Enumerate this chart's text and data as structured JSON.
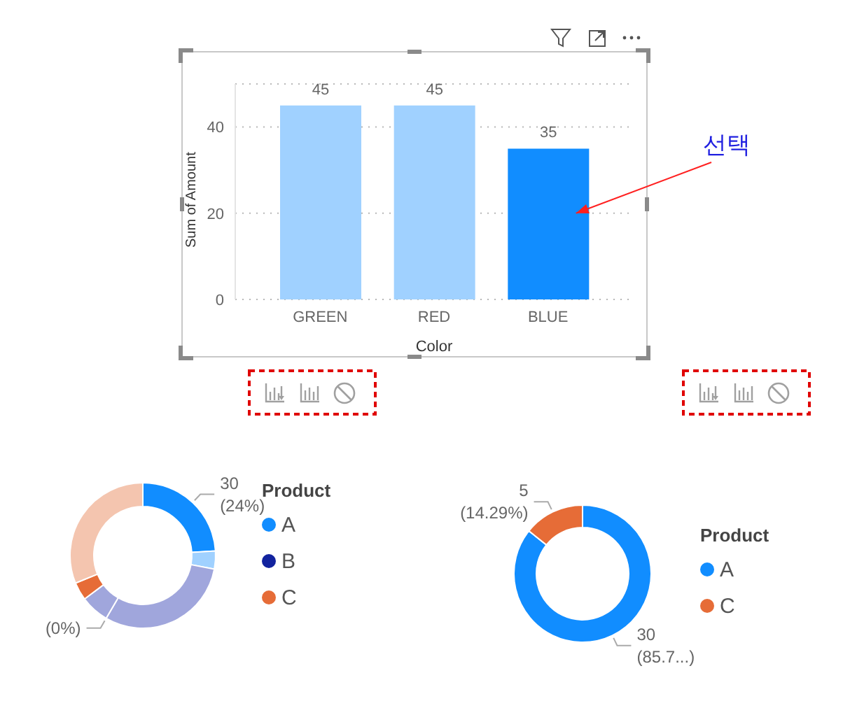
{
  "chart_data": [
    {
      "type": "bar",
      "categories": [
        "GREEN",
        "RED",
        "BLUE"
      ],
      "values": [
        45,
        45,
        35
      ],
      "colors": [
        "#a0d1ff",
        "#a0d1ff",
        "#118dff"
      ],
      "xlabel": "Color",
      "ylabel": "Sum of Amount",
      "ylim": [
        0,
        50
      ],
      "yticks": [
        0,
        20,
        40
      ],
      "grid": "y",
      "data_labels": true,
      "annotations": [
        "선택"
      ]
    },
    {
      "type": "donut",
      "categories": [
        "A",
        null,
        null,
        "B",
        null,
        "C",
        null
      ],
      "values": [
        30,
        5,
        38,
        0,
        8,
        5,
        39
      ],
      "colors": [
        "#118dff",
        "#a0d1ff",
        "#a0a6dc",
        "#12239e",
        "#a0a6dc",
        "#e66c37",
        "#f4c5af"
      ],
      "value_labels": [
        "30\n(24%)",
        null,
        null,
        "(0%)",
        null,
        null,
        null
      ],
      "legend": "right",
      "legend_title": "Product"
    },
    {
      "type": "donut",
      "categories": [
        "A",
        "C"
      ],
      "values": [
        30,
        5
      ],
      "colors": [
        "#118dff",
        "#e66c37"
      ],
      "value_labels": [
        "30\n(85.7...)",
        "5\n(14.29%)"
      ],
      "legend": "right",
      "legend_title": "Product"
    }
  ]
}
